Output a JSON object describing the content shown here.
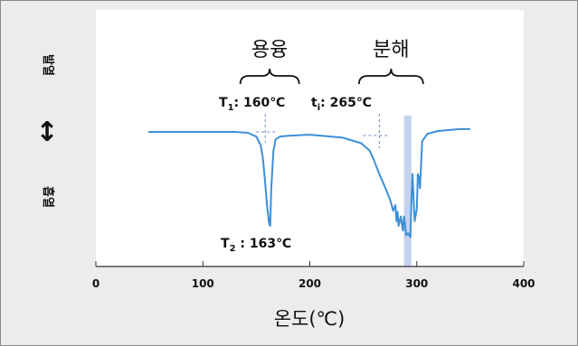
{
  "chart_data": {
    "type": "line",
    "title": "",
    "xlabel": "온도(℃)",
    "ylabel_top": "발열",
    "ylabel_bottom": "흡열",
    "xlim": [
      0,
      400
    ],
    "xticks": [
      0,
      100,
      200,
      300,
      400
    ],
    "ylim": [
      -1.25,
      1
    ],
    "grid": false,
    "series": [
      {
        "name": "",
        "color": "#3d8fd6",
        "x": [
          49,
          100,
          130,
          142,
          150,
          154,
          156,
          158,
          160,
          161,
          162,
          163,
          164,
          166,
          168,
          172,
          180,
          200,
          230,
          248,
          256,
          260,
          265,
          270,
          275,
          278,
          280,
          281,
          282,
          283,
          285,
          287,
          288,
          289,
          290,
          292,
          294,
          295,
          296,
          297,
          298,
          300,
          301,
          302,
          303,
          305,
          310,
          320,
          340,
          350
        ],
        "y": [
          0,
          0,
          0,
          -0.01,
          -0.05,
          -0.14,
          -0.27,
          -0.5,
          -0.78,
          -0.88,
          -0.98,
          -1.0,
          -0.6,
          -0.2,
          -0.08,
          -0.05,
          -0.04,
          -0.03,
          -0.06,
          -0.12,
          -0.2,
          -0.3,
          -0.45,
          -0.58,
          -0.72,
          -0.84,
          -0.78,
          -0.95,
          -0.85,
          -1.0,
          -0.9,
          -1.05,
          -0.9,
          -0.98,
          -1.1,
          -1.08,
          -1.12,
          -0.75,
          -0.45,
          -0.7,
          -0.95,
          -0.82,
          -0.45,
          -0.48,
          -0.6,
          -0.1,
          -0.02,
          0.01,
          0.03,
          0.03
        ]
      }
    ],
    "highlight_band": {
      "x_from": 288,
      "x_to": 295,
      "color": "#c6d3ee"
    },
    "regions": [
      {
        "label": "용융",
        "x_from": 135,
        "x_to": 190
      },
      {
        "label": "분해",
        "x_from": 246,
        "x_to": 306
      }
    ],
    "annotations": [
      {
        "id": "T1",
        "symbol": "T",
        "subscript": "1",
        "text": ": 160℃",
        "x": 160,
        "y": 0
      },
      {
        "id": "t1",
        "symbol": "t",
        "subscript": "i",
        "text": ": 265℃",
        "x": 265,
        "y": 0
      },
      {
        "id": "T2",
        "symbol": "T",
        "subscript": "2",
        "text": " : 163℃",
        "x": 163,
        "y": -1.0
      }
    ],
    "arrow": "↕"
  }
}
